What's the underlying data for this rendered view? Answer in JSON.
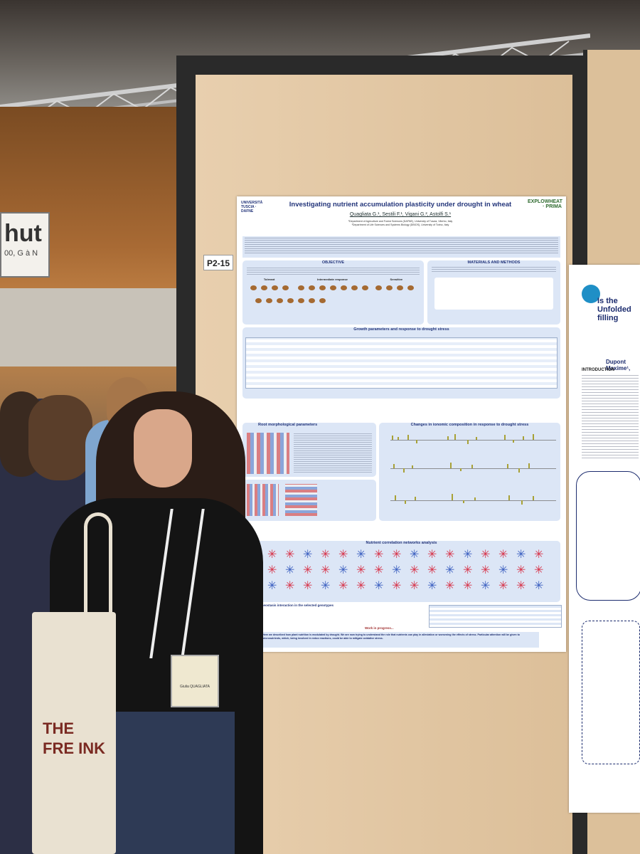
{
  "scene": {
    "hall_sign": {
      "big": "hut",
      "small": "00, G à N"
    },
    "board_label": "P2-15"
  },
  "poster": {
    "logo_left": "UNIVERSITÀ TUSCIA · DAFNE",
    "logo_right": "EXPLOWHEAT · PRIMA",
    "title": "Investigating nutrient accumulation plasticity under drought in wheat",
    "authors": "Quagliata G.¹, Sestili F.¹, Vigani G.², Astolfi S.¹",
    "affiliations": [
      "¹Department of Agriculture and Forest Sciences (DAFNE), University of Tuscia, Viterbo, Italy",
      "²Department of Life Sciences and Systems Biology (DBIOS), University of Torino, Italy"
    ],
    "sections": {
      "objective": "OBJECTIVE",
      "materials": "MATERIALS AND METHODS",
      "tolerant": "Tolerant",
      "intermediate": "Intermediate response",
      "sensitive": "Sensitive",
      "growth": "Growth parameters and response to drought stress",
      "root": "Root morphological parameters",
      "ionomic": "Changes in ionomic composition in response to drought stress",
      "networks": "Nutrient correlation networks analysis",
      "homeostasis": "S and Fe homeostasis interaction in the selected genotypes",
      "progress": "Work in progress..."
    },
    "conclusion": "Here we described how plant nutrition is modulated by drought. We are now trying to understand the role that nutrients can play in alleviation or worsening the effects of stress. Particular attention will be given to micronutrients, which, being involved in redox reactions, could be able to mitigate oxidative stress."
  },
  "poster2": {
    "title": "Is the Unfolded filling",
    "author": "Dupont Maxime¹,",
    "intro": "INTRODUCTION"
  },
  "badge": {
    "name": "Giulia QUAGLIATA"
  },
  "bag_text": "THE FRE INK"
}
